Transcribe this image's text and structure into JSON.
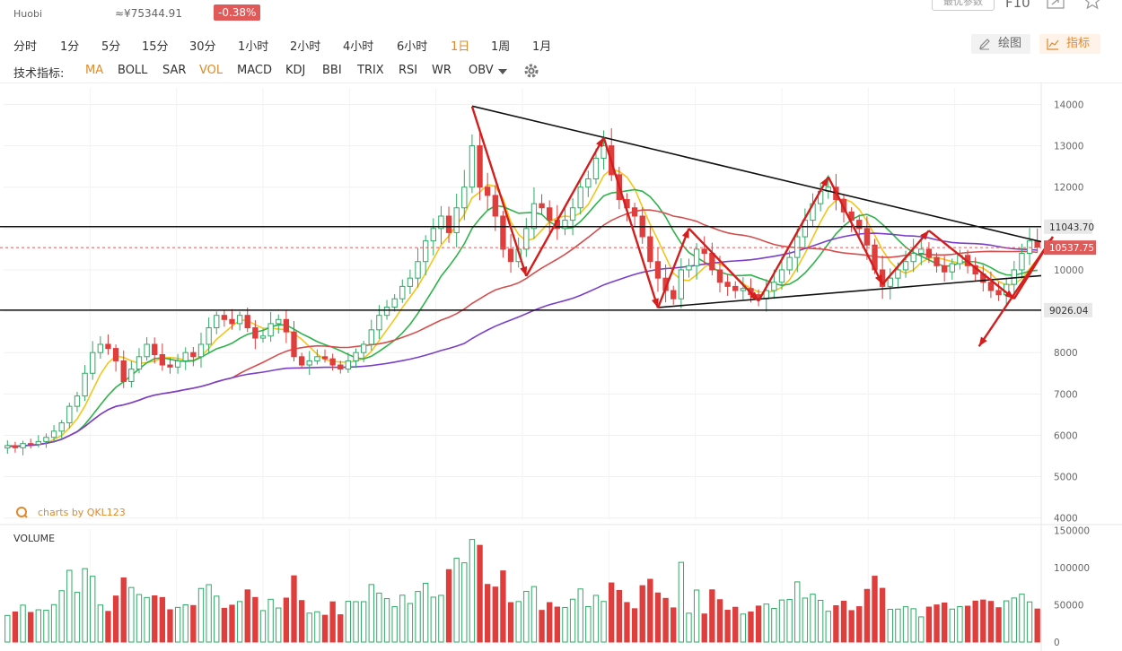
{
  "header": {
    "exchange": "Huobi",
    "price_cny": "≈¥75344.91",
    "change": "-0.38%",
    "top_button": "最优参数",
    "f10_label": "F10"
  },
  "timeframes": [
    {
      "label": "分时",
      "active": false
    },
    {
      "label": "1分",
      "active": false
    },
    {
      "label": "5分",
      "active": false
    },
    {
      "label": "15分",
      "active": false
    },
    {
      "label": "30分",
      "active": false
    },
    {
      "label": "1小时",
      "active": false
    },
    {
      "label": "2小时",
      "active": false
    },
    {
      "label": "4小时",
      "active": false
    },
    {
      "label": "6小时",
      "active": false
    },
    {
      "label": "1日",
      "active": true
    },
    {
      "label": "1周",
      "active": false
    },
    {
      "label": "1月",
      "active": false
    }
  ],
  "tools": {
    "draw_label": "绘图",
    "indicator_label": "指标"
  },
  "indicators": {
    "prefix": "技术指标:",
    "items": [
      {
        "label": "MA",
        "active": true
      },
      {
        "label": "BOLL",
        "active": false
      },
      {
        "label": "SAR",
        "active": false
      },
      {
        "label": "VOL",
        "active": true
      },
      {
        "label": "MACD",
        "active": false
      },
      {
        "label": "KDJ",
        "active": false
      },
      {
        "label": "BBI",
        "active": false
      },
      {
        "label": "TRIX",
        "active": false
      },
      {
        "label": "RSI",
        "active": false
      },
      {
        "label": "WR",
        "active": false
      },
      {
        "label": "OBV",
        "active": false
      }
    ]
  },
  "watermark": "charts by QKL123",
  "volume_title": "VOLUME",
  "colors": {
    "up": "#2eaa66",
    "down": "#e03d3d",
    "ma5": "#f5c518",
    "ma10": "#2eb34a",
    "ma30": "#d64f4f",
    "ma60": "#7a3fc9",
    "accent": "#e08a2a",
    "annotation": "#d41e1e"
  },
  "chart_data": {
    "type": "candlestick",
    "y_axis": {
      "ticks": [
        14000,
        13000,
        12000,
        11000,
        10000,
        9000,
        8000,
        7000,
        6000,
        5000,
        4000
      ],
      "range": [
        3950,
        14400
      ]
    },
    "volume_axis": {
      "ticks": [
        150000,
        100000,
        50000,
        0
      ],
      "range": [
        0,
        152000
      ]
    },
    "price_tags": [
      {
        "value": 11043.7,
        "label": "11043.70",
        "style": "gray"
      },
      {
        "value": 10537.75,
        "label": "10537.75",
        "style": "red"
      },
      {
        "value": 9026.04,
        "label": "9026.04",
        "style": "gray"
      }
    ],
    "support_resistance_lines": [
      11043.7,
      9026.04
    ],
    "triangle": {
      "upper": [
        [
          0,
          13960
        ],
        [
          1,
          10680
        ]
      ],
      "lower": [
        [
          0,
          9090
        ],
        [
          1,
          9860
        ]
      ]
    },
    "close": [
      5750,
      5700,
      5800,
      5780,
      5850,
      5950,
      6100,
      6300,
      6700,
      6950,
      7500,
      8000,
      8200,
      8100,
      7800,
      7300,
      7600,
      7900,
      8200,
      7950,
      7700,
      7650,
      7800,
      8000,
      7900,
      8200,
      8600,
      8900,
      8800,
      8700,
      8900,
      8600,
      8350,
      8400,
      8700,
      8800,
      8500,
      7900,
      7700,
      7800,
      7900,
      7850,
      7700,
      7600,
      7800,
      8000,
      8200,
      8550,
      8900,
      9100,
      9300,
      9600,
      9800,
      10200,
      10700,
      11000,
      11300,
      10900,
      11500,
      12000,
      13000,
      12000,
      11800,
      11300,
      10500,
      10200,
      10500,
      11000,
      11600,
      11500,
      11200,
      11000,
      11200,
      11500,
      12000,
      12200,
      12700,
      13000,
      12300,
      11700,
      11500,
      11300,
      10800,
      10200,
      9800,
      9500,
      9300,
      10000,
      10100,
      10500,
      10400,
      10000,
      9700,
      9600,
      9500,
      9550,
      9400,
      9300,
      9500,
      9700,
      10000,
      10300,
      10800,
      11200,
      11600,
      11900,
      12000,
      11700,
      11400,
      11200,
      11000,
      10600,
      10000,
      9600,
      9800,
      10000,
      10200,
      10400,
      10500,
      10300,
      10100,
      9950,
      10150,
      10350,
      10100,
      9900,
      9700,
      9500,
      9400,
      9650,
      10000,
      10400,
      10700,
      10550
    ]
  }
}
